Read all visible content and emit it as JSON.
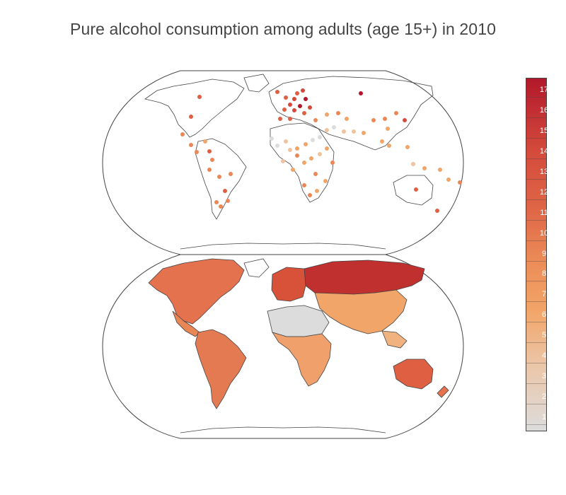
{
  "title": "Pure alcohol consumption among adults (age 15+) in 2010",
  "colorbar": {
    "ticks": [
      "17",
      "16",
      "15",
      "14",
      "13",
      "12",
      "11",
      "10",
      "9",
      "8",
      "7",
      "6",
      "5",
      "4",
      "3",
      "2",
      "1"
    ],
    "min": 0.3,
    "max": 17.6
  },
  "colors": {
    "low": "#dcdcdc",
    "mid": "#f2a568",
    "high": "#b2182b",
    "land_outline": "#444444"
  },
  "maps": [
    {
      "type": "scattergeo",
      "projection": "robinson"
    },
    {
      "type": "choropleth",
      "projection": "robinson"
    }
  ]
}
